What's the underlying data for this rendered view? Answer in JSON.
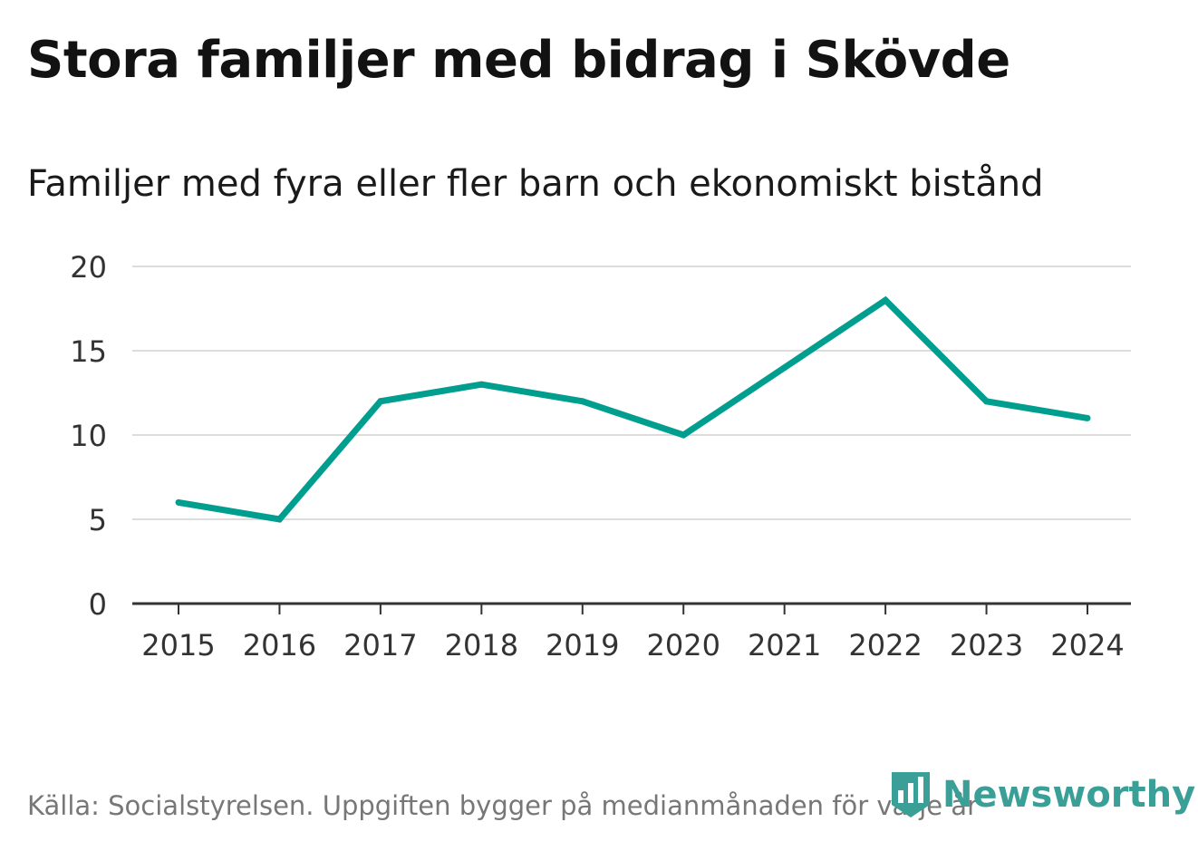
{
  "header": {
    "title": "Stora familjer med bidrag i Skövde",
    "subtitle": "Familjer med fyra eller fler barn och ekonomiskt bistånd"
  },
  "footer": {
    "source": "Källa: Socialstyrelsen. Uppgiften bygger på medianmånaden för varje år"
  },
  "brand": {
    "name": "Newsworthy",
    "icon": "newsworthy-logo-icon",
    "color": "#3a9f96"
  },
  "chart_data": {
    "type": "line",
    "title": "Stora familjer med bidrag i Skövde",
    "subtitle": "Familjer med fyra eller fler barn och ekonomiskt bistånd",
    "xlabel": "",
    "ylabel": "",
    "x": [
      "2015",
      "2016",
      "2017",
      "2018",
      "2019",
      "2020",
      "2021",
      "2022",
      "2023",
      "2024"
    ],
    "series": [
      {
        "name": "Familjer med fyra eller fler barn och ekonomiskt bistånd",
        "values": [
          6,
          5,
          12,
          13,
          12,
          10,
          14,
          18,
          12,
          11
        ],
        "color": "#009e8f"
      }
    ],
    "ylim": [
      0,
      20
    ],
    "yticks": [
      0,
      5,
      10,
      15,
      20
    ],
    "grid": true,
    "legend": "none"
  }
}
